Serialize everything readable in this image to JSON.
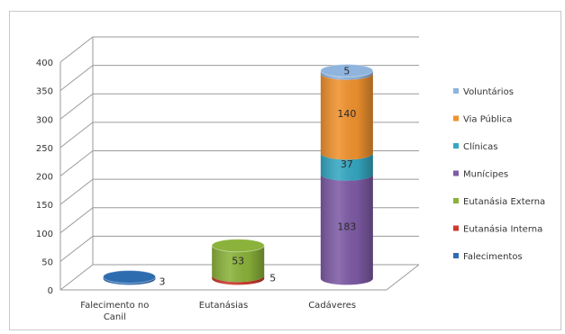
{
  "chart_data": {
    "type": "bar",
    "style": "3d-cylinder-stacked",
    "title": "",
    "xlabel": "",
    "ylabel": "",
    "ylim": [
      0,
      400
    ],
    "yticks": [
      0,
      50,
      100,
      150,
      200,
      250,
      300,
      350,
      400
    ],
    "grid": true,
    "legend_position": "right",
    "categories": [
      [
        "Falecimento no",
        "Canil"
      ],
      [
        "Eutanásias"
      ],
      [
        "Cadáveres"
      ]
    ],
    "series": [
      {
        "name": "Falecimentos",
        "color": "#2e6cb0",
        "values": [
          3,
          0,
          0
        ],
        "labels": [
          "3",
          "",
          ""
        ]
      },
      {
        "name": "Eutanásia Interna",
        "color": "#cc3b2e",
        "values": [
          0,
          5,
          0
        ],
        "labels": [
          "",
          "5",
          ""
        ]
      },
      {
        "name": "Eutanásia Externa",
        "color": "#8bb23a",
        "values": [
          0,
          53,
          0
        ],
        "labels": [
          "",
          "53",
          ""
        ]
      },
      {
        "name": "Munícipes",
        "color": "#7e5ba5",
        "values": [
          0,
          0,
          183
        ],
        "labels": [
          "",
          "",
          "183"
        ]
      },
      {
        "name": "Clínicas",
        "color": "#35a8c2",
        "values": [
          0,
          0,
          37
        ],
        "labels": [
          "",
          "",
          "37"
        ]
      },
      {
        "name": "Via Pública",
        "color": "#f0922e",
        "values": [
          0,
          0,
          140
        ],
        "labels": [
          "",
          "",
          "140"
        ]
      },
      {
        "name": "Voluntários",
        "color": "#8fb4de",
        "values": [
          0,
          0,
          5
        ],
        "labels": [
          "",
          "",
          "5"
        ]
      }
    ]
  }
}
